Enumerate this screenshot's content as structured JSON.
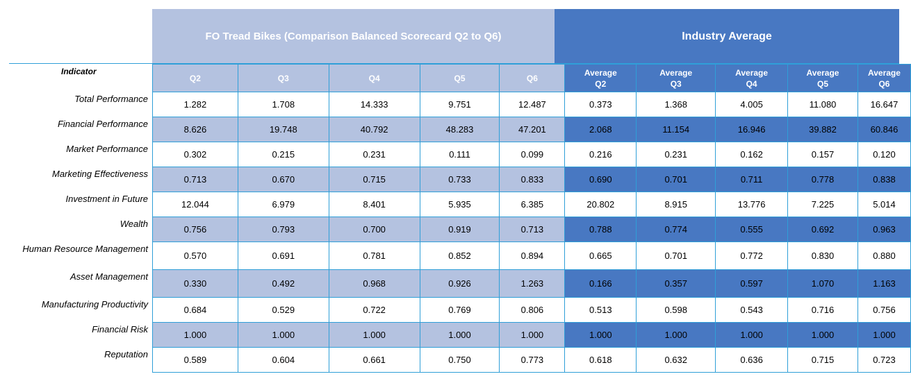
{
  "header": {
    "company_title": "FO Tread Bikes (Comparison Balanced Scorecard Q2 to Q6)",
    "industry_title": "Industry Average"
  },
  "indicator_label": "Indicator",
  "columns": {
    "own": [
      "Q2",
      "Q3",
      "Q4",
      "Q5",
      "Q6"
    ],
    "industry": [
      [
        "Average",
        "Q2"
      ],
      [
        "Average",
        "Q3"
      ],
      [
        "Average",
        "Q4"
      ],
      [
        "Average",
        "Q5"
      ],
      [
        "Average",
        "Q6"
      ]
    ]
  },
  "rows": [
    {
      "label": "Total Performance",
      "own": [
        "1.282",
        "1.708",
        "14.333",
        "9.751",
        "12.487"
      ],
      "industry": [
        "0.373",
        "1.368",
        "4.005",
        "11.080",
        "16.647"
      ]
    },
    {
      "label": "Financial Performance",
      "own": [
        "8.626",
        "19.748",
        "40.792",
        "48.283",
        "47.201"
      ],
      "industry": [
        "2.068",
        "11.154",
        "16.946",
        "39.882",
        "60.846"
      ]
    },
    {
      "label": "Market Performance",
      "own": [
        "0.302",
        "0.215",
        "0.231",
        "0.111",
        "0.099"
      ],
      "industry": [
        "0.216",
        "0.231",
        "0.162",
        "0.157",
        "0.120"
      ]
    },
    {
      "label": "Marketing Effectiveness",
      "own": [
        "0.713",
        "0.670",
        "0.715",
        "0.733",
        "0.833"
      ],
      "industry": [
        "0.690",
        "0.701",
        "0.711",
        "0.778",
        "0.838"
      ]
    },
    {
      "label": "Investment in Future",
      "own": [
        "12.044",
        "6.979",
        "8.401",
        "5.935",
        "6.385"
      ],
      "industry": [
        "20.802",
        "8.915",
        "13.776",
        "7.225",
        "5.014"
      ]
    },
    {
      "label": "Wealth",
      "own": [
        "0.756",
        "0.793",
        "0.700",
        "0.919",
        "0.713"
      ],
      "industry": [
        "0.788",
        "0.774",
        "0.555",
        "0.692",
        "0.963"
      ]
    },
    {
      "label": "Human Resource Management",
      "own": [
        "0.570",
        "0.691",
        "0.781",
        "0.852",
        "0.894"
      ],
      "industry": [
        "0.665",
        "0.701",
        "0.772",
        "0.830",
        "0.880"
      ]
    },
    {
      "label": "Asset Management",
      "own": [
        "0.330",
        "0.492",
        "0.968",
        "0.926",
        "1.263"
      ],
      "industry": [
        "0.166",
        "0.357",
        "0.597",
        "1.070",
        "1.163"
      ]
    },
    {
      "label": "Manufacturing Productivity",
      "own": [
        "0.684",
        "0.529",
        "0.722",
        "0.769",
        "0.806"
      ],
      "industry": [
        "0.513",
        "0.598",
        "0.543",
        "0.716",
        "0.756"
      ]
    },
    {
      "label": "Financial Risk",
      "own": [
        "1.000",
        "1.000",
        "1.000",
        "1.000",
        "1.000"
      ],
      "industry": [
        "1.000",
        "1.000",
        "1.000",
        "1.000",
        "1.000"
      ]
    },
    {
      "label": "Reputation",
      "own": [
        "0.589",
        "0.604",
        "0.661",
        "0.750",
        "0.773"
      ],
      "industry": [
        "0.618",
        "0.632",
        "0.636",
        "0.715",
        "0.723"
      ]
    }
  ],
  "colors": {
    "own_band": "#b4c2e0",
    "industry_band": "#4878c2",
    "grid_line": "#2f9fd8"
  }
}
